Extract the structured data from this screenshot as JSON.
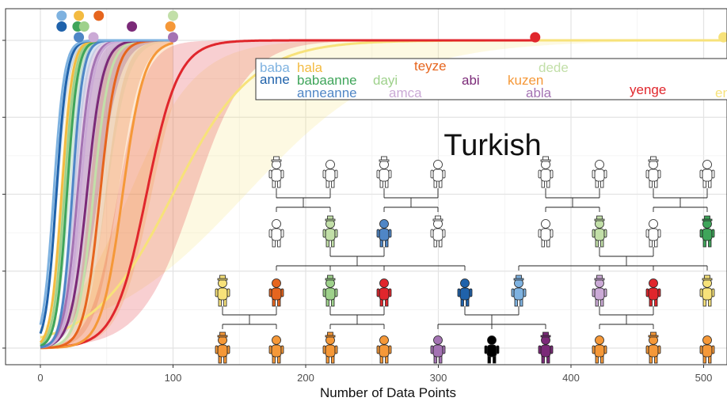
{
  "chart_data": {
    "type": "line",
    "title": "Turkish",
    "xlabel": "Number of Data Points",
    "ylabel": "",
    "xlim": [
      -27,
      515
    ],
    "ylim": [
      0,
      1
    ],
    "x_ticks": [
      0,
      100,
      200,
      300,
      400,
      500
    ],
    "x_tick_labels": [
      "0",
      "100",
      "200",
      "300",
      "400",
      "500"
    ],
    "y_ticks": [
      0,
      0.25,
      0.5,
      0.75,
      1.0
    ],
    "grid": true,
    "legend_position": "top-right (inset)",
    "series": [
      {
        "name": "baba",
        "color": "#7eb2e0",
        "mid": 10,
        "width": 4,
        "band": 0.08,
        "end_x": 100,
        "marker": [
          16,
          1.08
        ]
      },
      {
        "name": "anne",
        "color": "#1f62ab",
        "mid": 12,
        "width": 4,
        "band": 0.1,
        "end_x": 100,
        "marker": [
          16,
          1.045
        ]
      },
      {
        "name": "anneanne",
        "color": "#4f86c6",
        "mid": 24,
        "width": 4,
        "band": 0.1,
        "end_x": 100,
        "marker": [
          29,
          1.01
        ]
      },
      {
        "name": "hala",
        "color": "#f3bb41",
        "mid": 16,
        "width": 4,
        "band": 0.15,
        "end_x": 100,
        "marker": [
          29,
          1.08
        ]
      },
      {
        "name": "babaanne",
        "color": "#3fa55a",
        "mid": 20,
        "width": 4,
        "band": 0.12,
        "end_x": 100,
        "marker": [
          28,
          1.045
        ]
      },
      {
        "name": "dayi",
        "color": "#9ed18b",
        "mid": 18,
        "width": 4,
        "band": 0.12,
        "end_x": 100,
        "marker": [
          33,
          1.045
        ]
      },
      {
        "name": "amca",
        "color": "#cbaad6",
        "mid": 30,
        "width": 5,
        "band": 0.2,
        "end_x": 100,
        "marker": [
          40,
          1.01
        ]
      },
      {
        "name": "abla",
        "color": "#a473b3",
        "mid": 28,
        "width": 5,
        "band": 0.2,
        "end_x": 100,
        "marker": [
          100,
          1.01
        ]
      },
      {
        "name": "abi",
        "color": "#7b2a78",
        "mid": 35,
        "width": 6,
        "band": 0.25,
        "end_x": 100,
        "marker": [
          69,
          1.045
        ]
      },
      {
        "name": "teyze",
        "color": "#e6651e",
        "mid": 45,
        "width": 6,
        "band": 0.3,
        "end_x": 100,
        "marker": [
          44,
          1.08
        ]
      },
      {
        "name": "dede",
        "color": "#c2dfa8",
        "mid": 40,
        "width": 6,
        "band": 0.25,
        "end_x": 100,
        "marker": [
          100,
          1.08
        ]
      },
      {
        "name": "kuzen",
        "color": "#f59838",
        "mid": 62,
        "width": 8,
        "band": 0.35,
        "end_x": 100,
        "marker": [
          98,
          1.045
        ]
      },
      {
        "name": "yenge",
        "color": "#e0262c",
        "mid": 80,
        "width": 12,
        "band": 0.45,
        "end_x": 373,
        "marker": [
          373,
          1.01
        ]
      },
      {
        "name": "enişte",
        "label": "en",
        "color": "#f7e27a",
        "mid": 100,
        "width": 30,
        "band": 0.55,
        "end_x": 515,
        "marker": [
          515,
          1.01
        ]
      }
    ]
  },
  "legend": {
    "col1a": "baba",
    "col1b": "anne",
    "col2a": "hala",
    "col2b": "babaanne",
    "col2c": "anneanne",
    "col3a": "dayi",
    "col3b": "amca",
    "col4a": "teyze",
    "col4b": "abi",
    "col5a": "dede",
    "col5b": "kuzen",
    "col5c": "abla",
    "col6a": "yenge",
    "col6b": "en",
    "colors": {
      "baba": "#7eb2e0",
      "anne": "#1f62ab",
      "hala": "#f3bb41",
      "babaanne": "#3fa55a",
      "anneanne": "#4f86c6",
      "dayi": "#9ed18b",
      "amca": "#cbaad6",
      "teyze": "#e6651e",
      "abi": "#7b2a78",
      "dede": "#c2dfa8",
      "kuzen": "#f59838",
      "abla": "#a473b3",
      "yenge": "#e0262c",
      "en": "#f7e27a"
    }
  },
  "family_tree": {
    "rows": [
      {
        "row": "great-grandparents",
        "people": [
          {
            "fill": "#ffffff",
            "hat": true
          },
          {
            "fill": "#ffffff",
            "hat": false
          },
          {
            "fill": "#ffffff",
            "hat": true
          },
          {
            "fill": "#ffffff",
            "hat": false
          },
          {
            "fill": "#ffffff",
            "hat": true
          },
          {
            "fill": "#ffffff",
            "hat": false
          },
          {
            "fill": "#ffffff",
            "hat": true
          },
          {
            "fill": "#ffffff",
            "hat": false
          }
        ]
      },
      {
        "row": "grandparents",
        "people": [
          {
            "fill": "#ffffff",
            "hat": false
          },
          {
            "fill": "#c2dfa8",
            "hat": true
          },
          {
            "fill": "#4f86c6",
            "hat": false
          },
          {
            "fill": "#ffffff",
            "hat": true
          },
          {
            "fill": "#ffffff",
            "hat": false
          },
          {
            "fill": "#c2dfa8",
            "hat": true
          },
          {
            "fill": "#ffffff",
            "hat": false
          },
          {
            "fill": "#3fa55a",
            "hat": true
          }
        ]
      },
      {
        "row": "parents",
        "people": [
          {
            "fill": "#f7e27a",
            "hat": true
          },
          {
            "fill": "#e6651e",
            "hat": false
          },
          {
            "fill": "#9ed18b",
            "hat": true
          },
          {
            "fill": "#e0262c",
            "hat": false
          },
          {
            "fill": "#1f62ab",
            "hat": false
          },
          {
            "fill": "#7eb2e0",
            "hat": true
          },
          {
            "fill": "#cbaad6",
            "hat": true
          },
          {
            "fill": "#e0262c",
            "hat": false
          },
          {
            "fill": "#f7e27a",
            "hat": true
          }
        ]
      },
      {
        "row": "children",
        "people": [
          {
            "fill": "#f59838",
            "hat": true
          },
          {
            "fill": "#f59838",
            "hat": false
          },
          {
            "fill": "#f59838",
            "hat": true
          },
          {
            "fill": "#f59838",
            "hat": false
          },
          {
            "fill": "#a473b3",
            "hat": false
          },
          {
            "fill": "#000000",
            "hat": false
          },
          {
            "fill": "#7b2a78",
            "hat": true
          },
          {
            "fill": "#f59838",
            "hat": false
          },
          {
            "fill": "#f59838",
            "hat": true
          },
          {
            "fill": "#f59838",
            "hat": false
          }
        ]
      }
    ]
  }
}
